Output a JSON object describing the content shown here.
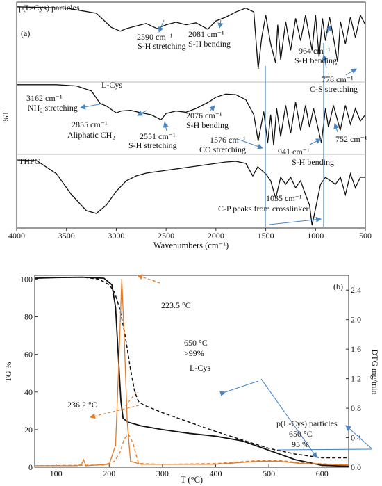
{
  "chart_data": [
    {
      "type": "line",
      "panel_label": "(a)",
      "xlabel": "Wavenumbers (cm⁻¹)",
      "ylabel": "%T",
      "xlim": [
        4000,
        500
      ],
      "x_ticks": [
        4000,
        3500,
        3000,
        2500,
        2000,
        1500,
        1000,
        500
      ],
      "series": [
        {
          "name": "p(L-Cys) particles",
          "points": [
            [
              4000,
              0.02
            ],
            [
              3500,
              0.04
            ],
            [
              3200,
              0.12
            ],
            [
              3050,
              0.34
            ],
            [
              2960,
              0.4
            ],
            [
              2900,
              0.36
            ],
            [
              2800,
              0.32
            ],
            [
              2700,
              0.28
            ],
            [
              2590,
              0.36
            ],
            [
              2500,
              0.3
            ],
            [
              2400,
              0.26
            ],
            [
              2300,
              0.3
            ],
            [
              2200,
              0.27
            ],
            [
              2081,
              0.37
            ],
            [
              2000,
              0.24
            ],
            [
              1900,
              0.18
            ],
            [
              1800,
              0.1
            ],
            [
              1700,
              0.04
            ],
            [
              1620,
              0.1
            ],
            [
              1576,
              0.99
            ],
            [
              1540,
              0.5
            ],
            [
              1500,
              0.15
            ],
            [
              1450,
              0.6
            ],
            [
              1400,
              0.9
            ],
            [
              1380,
              0.3
            ],
            [
              1350,
              0.85
            ],
            [
              1300,
              0.25
            ],
            [
              1250,
              0.7
            ],
            [
              1200,
              0.2
            ],
            [
              1150,
              0.55
            ],
            [
              1100,
              0.15
            ],
            [
              1035,
              0.7
            ],
            [
              1000,
              0.15
            ],
            [
              964,
              0.8
            ],
            [
              930,
              0.2
            ],
            [
              900,
              0.55
            ],
            [
              860,
              0.18
            ],
            [
              820,
              0.5
            ],
            [
              778,
              0.88
            ],
            [
              750,
              0.25
            ],
            [
              700,
              0.6
            ],
            [
              650,
              0.18
            ],
            [
              600,
              0.5
            ],
            [
              550,
              0.15
            ],
            [
              500,
              0.3
            ]
          ]
        },
        {
          "name": "L-Cys",
          "points": [
            [
              4000,
              0.02
            ],
            [
              3600,
              0.02
            ],
            [
              3400,
              0.04
            ],
            [
              3250,
              0.12
            ],
            [
              3162,
              0.32
            ],
            [
              3100,
              0.36
            ],
            [
              3000,
              0.47
            ],
            [
              2950,
              0.44
            ],
            [
              2855,
              0.43
            ],
            [
              2750,
              0.47
            ],
            [
              2650,
              0.5
            ],
            [
              2551,
              0.58
            ],
            [
              2500,
              0.48
            ],
            [
              2400,
              0.44
            ],
            [
              2300,
              0.46
            ],
            [
              2200,
              0.4
            ],
            [
              2076,
              0.3
            ],
            [
              2000,
              0.22
            ],
            [
              1900,
              0.17
            ],
            [
              1800,
              0.18
            ],
            [
              1700,
              0.26
            ],
            [
              1620,
              0.5
            ],
            [
              1576,
              0.92
            ],
            [
              1520,
              0.45
            ],
            [
              1480,
              0.95
            ],
            [
              1450,
              0.5
            ],
            [
              1420,
              0.99
            ],
            [
              1390,
              0.4
            ],
            [
              1350,
              0.85
            ],
            [
              1300,
              0.35
            ],
            [
              1250,
              0.8
            ],
            [
              1200,
              0.3
            ],
            [
              1150,
              0.75
            ],
            [
              1100,
              0.35
            ],
            [
              1060,
              0.7
            ],
            [
              1020,
              0.4
            ],
            [
              941,
              0.95
            ],
            [
              900,
              0.4
            ],
            [
              870,
              0.7
            ],
            [
              820,
              0.35
            ],
            [
              752,
              0.75
            ],
            [
              700,
              0.35
            ],
            [
              650,
              0.65
            ],
            [
              600,
              0.4
            ],
            [
              550,
              0.6
            ],
            [
              500,
              0.5
            ]
          ]
        },
        {
          "name": "THPC",
          "points": [
            [
              4000,
              0.05
            ],
            [
              3800,
              0.06
            ],
            [
              3600,
              0.25
            ],
            [
              3450,
              0.55
            ],
            [
              3300,
              0.78
            ],
            [
              3200,
              0.82
            ],
            [
              3100,
              0.7
            ],
            [
              3000,
              0.5
            ],
            [
              2900,
              0.35
            ],
            [
              2800,
              0.28
            ],
            [
              2700,
              0.24
            ],
            [
              2600,
              0.22
            ],
            [
              2500,
              0.2
            ],
            [
              2400,
              0.18
            ],
            [
              2300,
              0.16
            ],
            [
              2200,
              0.14
            ],
            [
              2100,
              0.12
            ],
            [
              2000,
              0.1
            ],
            [
              1900,
              0.08
            ],
            [
              1800,
              0.07
            ],
            [
              1700,
              0.1
            ],
            [
              1630,
              0.28
            ],
            [
              1580,
              0.15
            ],
            [
              1500,
              0.25
            ],
            [
              1450,
              0.35
            ],
            [
              1400,
              0.6
            ],
            [
              1350,
              0.3
            ],
            [
              1300,
              0.4
            ],
            [
              1250,
              0.3
            ],
            [
              1200,
              0.45
            ],
            [
              1150,
              0.35
            ],
            [
              1100,
              0.55
            ],
            [
              1060,
              0.7
            ],
            [
              1035,
              0.99
            ],
            [
              1000,
              0.75
            ],
            [
              950,
              0.4
            ],
            [
              900,
              0.3
            ],
            [
              850,
              0.35
            ],
            [
              800,
              0.4
            ],
            [
              750,
              0.3
            ],
            [
              700,
              0.55
            ],
            [
              650,
              0.25
            ],
            [
              600,
              0.45
            ],
            [
              550,
              0.3
            ],
            [
              500,
              0.3
            ]
          ]
        }
      ],
      "annotations": [
        {
          "text": "p(L-Cys) particles"
        },
        {
          "text": "2590 cm⁻¹"
        },
        {
          "text": "S-H stretching"
        },
        {
          "text": "2081 cm⁻¹"
        },
        {
          "text": "S-H bending"
        },
        {
          "text": "964 cm⁻¹"
        },
        {
          "text": "S-H bending"
        },
        {
          "text": "778 cm⁻¹"
        },
        {
          "text": "C-S stretching"
        },
        {
          "text": "L-Cys"
        },
        {
          "text": "3162 cm⁻¹"
        },
        {
          "text": "NH₂ stretching"
        },
        {
          "text": "2855 cm⁻¹"
        },
        {
          "text": "Aliphatic CH₂"
        },
        {
          "text": "2551 cm⁻¹"
        },
        {
          "text": "S-H stretching"
        },
        {
          "text": "2076 cm⁻¹"
        },
        {
          "text": "S-H bending"
        },
        {
          "text": "1576 cm⁻¹"
        },
        {
          "text": "CO stretching"
        },
        {
          "text": "752 cm⁻¹"
        },
        {
          "text": "941 cm⁻¹"
        },
        {
          "text": "S-H bending"
        },
        {
          "text": "THPC"
        },
        {
          "text": "1035 cm⁻¹"
        },
        {
          "text": "C-P peaks from crosslinker"
        }
      ]
    },
    {
      "type": "line",
      "panel_label": "(b)",
      "xlabel": "T (°C)",
      "ylabel": "TG %",
      "ylabel_right": "DTG mg/min",
      "xlim": [
        60,
        650
      ],
      "ylim": [
        0,
        102
      ],
      "ylim_right": [
        0,
        2.6
      ],
      "x_ticks": [
        100,
        200,
        300,
        400,
        500,
        600
      ],
      "y_ticks": [
        0,
        20,
        40,
        60,
        80,
        100
      ],
      "y_ticks_right": [
        0,
        0.4,
        0.8,
        1.2,
        1.6,
        2.0,
        2.4
      ],
      "series": [
        {
          "name": "L-Cys TG",
          "axis": "left",
          "points": [
            [
              60,
              100.5
            ],
            [
              100,
              100.8
            ],
            [
              150,
              101
            ],
            [
              190,
              100.5
            ],
            [
              205,
              97
            ],
            [
              212,
              85
            ],
            [
              218,
              55
            ],
            [
              222,
              35
            ],
            [
              226,
              26
            ],
            [
              235,
              24
            ],
            [
              260,
              22
            ],
            [
              300,
              20
            ],
            [
              350,
              18
            ],
            [
              400,
              16.5
            ],
            [
              450,
              14
            ],
            [
              500,
              9
            ],
            [
              550,
              4
            ],
            [
              600,
              1
            ],
            [
              650,
              0.5
            ]
          ]
        },
        {
          "name": "p(L-Cys) particles TG",
          "axis": "left",
          "points": [
            [
              60,
              100.5
            ],
            [
              100,
              100.8
            ],
            [
              150,
              101
            ],
            [
              180,
              100
            ],
            [
              200,
              97
            ],
            [
              210,
              93
            ],
            [
              220,
              84
            ],
            [
              230,
              70
            ],
            [
              240,
              52
            ],
            [
              248,
              40
            ],
            [
              255,
              35
            ],
            [
              265,
              33
            ],
            [
              300,
              29
            ],
            [
              350,
              24
            ],
            [
              400,
              19
            ],
            [
              450,
              14.5
            ],
            [
              500,
              10
            ],
            [
              550,
              7
            ],
            [
              600,
              5
            ],
            [
              650,
              5
            ]
          ]
        },
        {
          "name": "L-Cys DTG",
          "axis": "right",
          "points": [
            [
              60,
              0.02
            ],
            [
              140,
              0.02
            ],
            [
              148,
              0.04
            ],
            [
              152,
              0.1
            ],
            [
              156,
              0.02
            ],
            [
              200,
              0.04
            ],
            [
              212,
              0.3
            ],
            [
              218,
              1.4
            ],
            [
              223.5,
              2.55
            ],
            [
              228,
              1.8
            ],
            [
              234,
              0.6
            ],
            [
              240,
              0.08
            ],
            [
              260,
              0.04
            ],
            [
              400,
              0.04
            ],
            [
              480,
              0.08
            ],
            [
              520,
              0.08
            ],
            [
              560,
              0.05
            ],
            [
              650,
              0.03
            ]
          ]
        },
        {
          "name": "p(L-Cys) particles DTG",
          "axis": "right",
          "points": [
            [
              60,
              0.02
            ],
            [
              190,
              0.03
            ],
            [
              210,
              0.08
            ],
            [
              220,
              0.2
            ],
            [
              228,
              0.38
            ],
            [
              236.2,
              0.45
            ],
            [
              245,
              0.32
            ],
            [
              255,
              0.05
            ],
            [
              300,
              0.04
            ],
            [
              400,
              0.05
            ],
            [
              480,
              0.09
            ],
            [
              520,
              0.09
            ],
            [
              560,
              0.06
            ],
            [
              650,
              0.03
            ]
          ]
        }
      ],
      "annotations": [
        {
          "text": "223.5 °C"
        },
        {
          "text": "650 °C"
        },
        {
          "text": ">99%"
        },
        {
          "text": "L-Cys"
        },
        {
          "text": "236.2 °C"
        },
        {
          "text": "p(L-Cys) particles"
        },
        {
          "text": "650 °C"
        },
        {
          "text": "95 %"
        }
      ]
    }
  ],
  "colors": {
    "black": "#111111",
    "blue": "#4a86c5",
    "orange": "#e07c2b"
  }
}
